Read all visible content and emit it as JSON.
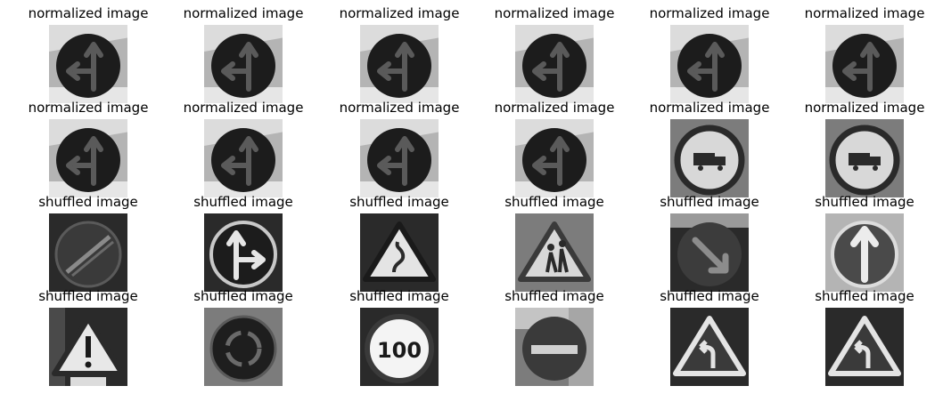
{
  "figure": {
    "rows": [
      {
        "title": "normalized image",
        "images": [
          {
            "icon": "ahead-or-left-sign-icon",
            "background": "light"
          },
          {
            "icon": "ahead-or-left-sign-icon",
            "background": "light"
          },
          {
            "icon": "ahead-or-left-sign-icon",
            "background": "light"
          },
          {
            "icon": "ahead-or-left-sign-icon",
            "background": "light"
          },
          {
            "icon": "ahead-or-left-sign-icon",
            "background": "light"
          },
          {
            "icon": "ahead-or-left-sign-icon",
            "background": "light"
          }
        ]
      },
      {
        "title": "normalized image",
        "images": [
          {
            "icon": "ahead-or-left-sign-icon",
            "background": "light"
          },
          {
            "icon": "ahead-or-left-sign-icon",
            "background": "light"
          },
          {
            "icon": "ahead-or-left-sign-icon",
            "background": "light"
          },
          {
            "icon": "ahead-or-left-sign-icon",
            "background": "light"
          },
          {
            "icon": "no-trucks-sign-icon",
            "background": "mid"
          },
          {
            "icon": "no-trucks-sign-icon",
            "background": "mid"
          }
        ]
      },
      {
        "title": "shuffled image",
        "images": [
          {
            "icon": "end-of-restriction-sign-icon",
            "background": "dark"
          },
          {
            "icon": "ahead-or-right-sign-icon",
            "background": "dark"
          },
          {
            "icon": "double-curve-warning-sign-icon",
            "background": "dark"
          },
          {
            "icon": "children-crossing-sign-icon",
            "background": "mid"
          },
          {
            "icon": "keep-right-sign-icon",
            "background": "dark"
          },
          {
            "icon": "ahead-only-sign-icon",
            "background": "light"
          }
        ]
      },
      {
        "title": "shuffled image",
        "images": [
          {
            "icon": "general-warning-sign-icon",
            "background": "dark"
          },
          {
            "icon": "roundabout-sign-icon",
            "background": "mid"
          },
          {
            "icon": "speed-limit-sign-icon",
            "background": "dark",
            "text": "100"
          },
          {
            "icon": "no-entry-sign-icon",
            "background": "mid"
          },
          {
            "icon": "curve-warning-sign-icon",
            "background": "dark"
          },
          {
            "icon": "curve-warning-sign-icon",
            "background": "dark"
          }
        ]
      }
    ]
  }
}
